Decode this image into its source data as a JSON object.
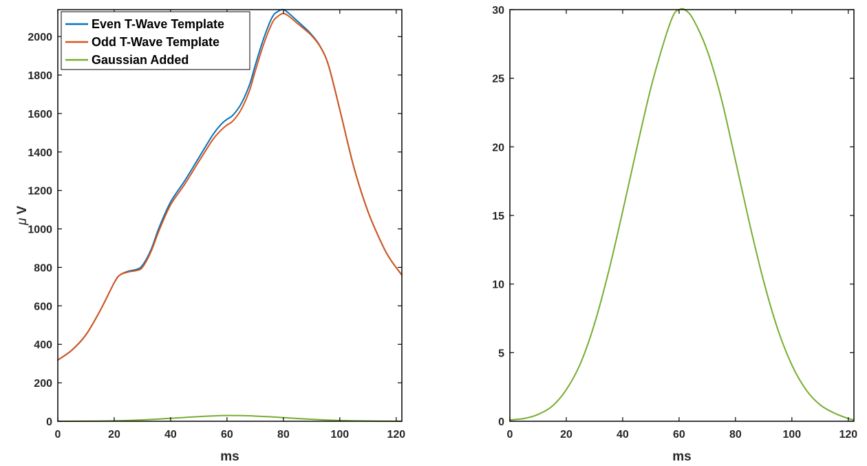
{
  "chart_data": [
    {
      "type": "line",
      "xlabel": "ms",
      "ylabel": "μ V",
      "ylabel_prefix": "μ",
      "ylabel_unit": "V",
      "xlim": [
        0,
        122
      ],
      "ylim": [
        0,
        2140
      ],
      "xticks": [
        0,
        20,
        40,
        60,
        80,
        100,
        120
      ],
      "yticks": [
        0,
        200,
        400,
        600,
        800,
        1000,
        1200,
        1400,
        1600,
        1800,
        2000
      ],
      "legend_position": "top-left",
      "series": [
        {
          "name": "Even T-Wave Template",
          "color": "#0072BD",
          "x": [
            0,
            5,
            10,
            15,
            20,
            22,
            25,
            28,
            30,
            33,
            36,
            40,
            45,
            50,
            55,
            58,
            60,
            62,
            65,
            68,
            70,
            73,
            76,
            78,
            80,
            82,
            85,
            88,
            90,
            93,
            96,
            100,
            105,
            110,
            115,
            118,
            122
          ],
          "y": [
            318,
            370,
            450,
            575,
            720,
            760,
            780,
            790,
            810,
            890,
            1010,
            1140,
            1250,
            1370,
            1490,
            1545,
            1570,
            1590,
            1650,
            1750,
            1850,
            1990,
            2100,
            2130,
            2140,
            2120,
            2080,
            2040,
            2010,
            1950,
            1850,
            1620,
            1320,
            1090,
            920,
            840,
            760
          ]
        },
        {
          "name": "Odd T-Wave Template",
          "color": "#D95319",
          "x": [
            0,
            5,
            10,
            15,
            20,
            22,
            25,
            28,
            30,
            33,
            36,
            40,
            45,
            50,
            55,
            58,
            60,
            62,
            65,
            68,
            70,
            73,
            76,
            78,
            80,
            82,
            85,
            88,
            90,
            93,
            96,
            100,
            105,
            110,
            115,
            118,
            122
          ],
          "y": [
            318,
            370,
            450,
            575,
            720,
            760,
            776,
            784,
            800,
            880,
            995,
            1125,
            1232,
            1350,
            1465,
            1515,
            1540,
            1560,
            1620,
            1720,
            1820,
            1960,
            2070,
            2105,
            2120,
            2105,
            2068,
            2032,
            2005,
            1948,
            1850,
            1620,
            1320,
            1090,
            920,
            840,
            760
          ]
        },
        {
          "name": "Gaussian Added",
          "color": "#77AC30",
          "x": [
            0,
            5,
            10,
            15,
            20,
            25,
            30,
            35,
            40,
            45,
            50,
            55,
            60,
            65,
            70,
            75,
            80,
            85,
            90,
            95,
            100,
            105,
            110,
            115,
            120,
            122
          ],
          "y": [
            0.1,
            0.2,
            0.5,
            1.1,
            2.3,
            4.2,
            7.1,
            10.9,
            15.3,
            19.9,
            24.3,
            27.9,
            30.0,
            29.3,
            27.0,
            23.5,
            19.0,
            14.4,
            10.2,
            6.7,
            4.1,
            2.3,
            1.2,
            0.6,
            0.2,
            0.1
          ]
        }
      ]
    },
    {
      "type": "line",
      "xlabel": "ms",
      "ylabel": "",
      "xlim": [
        0,
        122
      ],
      "ylim": [
        0,
        30
      ],
      "xticks": [
        0,
        20,
        40,
        60,
        80,
        100,
        120
      ],
      "yticks": [
        0,
        5,
        10,
        15,
        20,
        25,
        30
      ],
      "series": [
        {
          "color": "#77AC30",
          "x": [
            0,
            5,
            10,
            15,
            20,
            25,
            30,
            35,
            40,
            45,
            50,
            55,
            58,
            60,
            62,
            65,
            70,
            75,
            80,
            85,
            90,
            95,
            100,
            105,
            110,
            115,
            120,
            122
          ],
          "y": [
            0.1,
            0.2,
            0.5,
            1.1,
            2.3,
            4.2,
            7.1,
            10.9,
            15.3,
            19.9,
            24.3,
            27.9,
            29.6,
            30.0,
            30.0,
            29.3,
            27.0,
            23.5,
            19.0,
            14.4,
            10.2,
            6.7,
            4.1,
            2.3,
            1.2,
            0.6,
            0.2,
            0.1
          ]
        }
      ]
    }
  ]
}
